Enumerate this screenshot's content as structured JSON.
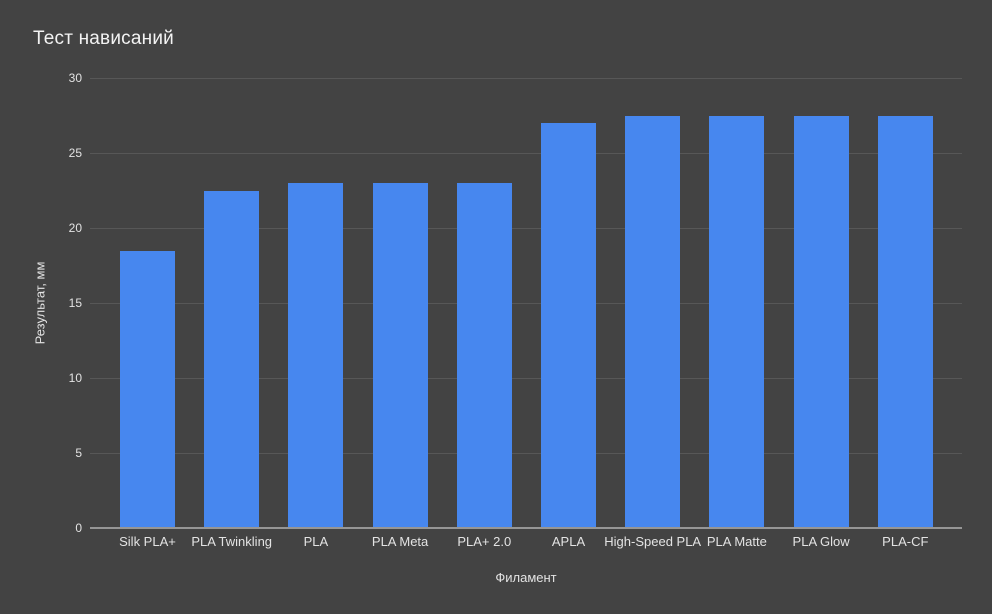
{
  "title": "Тест нависаний",
  "chart_data": {
    "type": "bar",
    "title": "Тест нависаний",
    "xlabel": "Филамент",
    "ylabel": "Результат, мм",
    "categories": [
      "Silk PLA+",
      "PLA Twinkling",
      "PLA",
      "PLA Meta",
      "PLA+ 2.0",
      "APLA",
      "High-Speed PLA",
      "PLA Matte",
      "PLA Glow",
      "PLA-CF"
    ],
    "values": [
      18.5,
      22.5,
      23,
      23,
      23,
      27,
      27.5,
      27.5,
      27.5,
      27.5
    ],
    "ylim": [
      0,
      30
    ],
    "yticks": [
      0,
      5,
      10,
      15,
      20,
      25,
      30
    ],
    "grid": true,
    "legend": "none",
    "colors": {
      "bar": "#4787ef",
      "background": "#434343",
      "gridline": "#575757",
      "baseline": "#969696",
      "title_text": "#f3f3f3",
      "label_text": "#e3e3e3"
    }
  }
}
